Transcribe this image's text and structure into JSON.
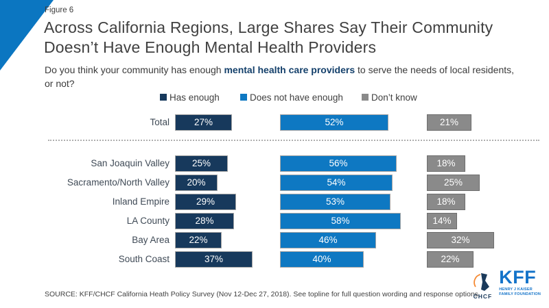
{
  "figure_label": "Figure 6",
  "title": {
    "line1": "Across California Regions, Large Shares Say Their Community",
    "line2": "Doesn’t Have Enough Mental Health Providers"
  },
  "subtitle": {
    "prefix": "Do you think your community has enough ",
    "bold": "mental health care providers",
    "suffix": " to serve the needs of local residents, or not?"
  },
  "legend": {
    "items": [
      {
        "label": "Has enough",
        "color": "#17395c"
      },
      {
        "label": "Does not have enough",
        "color": "#0e78c2"
      },
      {
        "label": "Don’t know",
        "color": "#8a8a8a"
      }
    ]
  },
  "chart_data": {
    "type": "bar",
    "orientation": "horizontal",
    "unit": "%",
    "value_range": [
      0,
      100
    ],
    "grid": false,
    "legend_position": "top",
    "categories": [
      "Total",
      "San Joaquin Valley",
      "Sacramento/North Valley",
      "Inland Empire",
      "LA County",
      "Bay Area",
      "South Coast"
    ],
    "separator_after_category": "Total",
    "series": [
      {
        "name": "Has enough",
        "color": "#17395c",
        "border": "#a6a6a6",
        "values": [
          27,
          25,
          20,
          29,
          28,
          22,
          37
        ]
      },
      {
        "name": "Does not have enough",
        "color": "#0e78c2",
        "border": "#a6a6a6",
        "values": [
          52,
          56,
          54,
          53,
          58,
          46,
          40
        ]
      },
      {
        "name": "Don’t know",
        "color": "#8a8a8a",
        "border": "#6e6e6e",
        "values": [
          21,
          18,
          25,
          18,
          14,
          32,
          22
        ]
      }
    ]
  },
  "source": "SOURCE: KFF/CHCF California Heath Policy Survey (Nov 12-Dec 27, 2018). See topline for full question wording and response options.",
  "logos": {
    "chcf_label": "CHCF",
    "kff_word": "KFF",
    "kff_sub_line1": "HENRY J KAISER",
    "kff_sub_line2": "FAMILY FOUNDATION"
  },
  "colors": {
    "corner_accent": "#0b76c1",
    "title_text": "#404040",
    "subtitle_bold": "#14406b",
    "kff_blue": "#1373c9",
    "chcf_navy": "#1b3a5b",
    "chcf_orange": "#f58a33"
  }
}
